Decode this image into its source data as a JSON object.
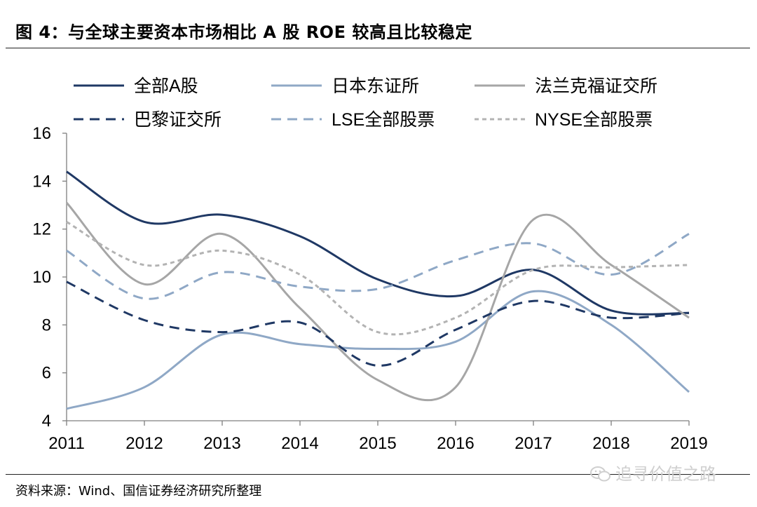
{
  "figure": {
    "title": "图 4：与全球主要资本市场相比 A 股 ROE 较高且比较稳定",
    "source": "资料来源：Wind、国信证券经济研究所整理",
    "watermark": "追寻价值之路",
    "watermark_icon": "wechat-icon"
  },
  "chart_data": {
    "type": "line",
    "title": "",
    "xlabel": "",
    "ylabel": "",
    "categories": [
      "2011",
      "2012",
      "2013",
      "2014",
      "2015",
      "2016",
      "2017",
      "2018",
      "2019"
    ],
    "ylim": [
      4,
      16
    ],
    "yticks": [
      4,
      6,
      8,
      10,
      12,
      14,
      16
    ],
    "grid": false,
    "legend_position": "top",
    "series": [
      {
        "name": "全部A股",
        "values": [
          14.4,
          12.3,
          12.6,
          11.7,
          9.9,
          9.2,
          10.3,
          8.6,
          8.5
        ],
        "color": "#1f3864",
        "dash": "solid"
      },
      {
        "name": "日本东证所",
        "values": [
          4.5,
          5.4,
          7.6,
          7.2,
          7.0,
          7.3,
          9.4,
          8.0,
          5.2
        ],
        "color": "#8fa8c6",
        "dash": "solid"
      },
      {
        "name": "法兰克福证交所",
        "values": [
          13.1,
          9.7,
          11.8,
          8.7,
          5.7,
          5.4,
          12.4,
          10.5,
          8.3
        ],
        "color": "#a6a6a6",
        "dash": "solid"
      },
      {
        "name": "巴黎证交所",
        "values": [
          9.8,
          8.2,
          7.7,
          8.1,
          6.3,
          7.8,
          9.0,
          8.3,
          8.5
        ],
        "color": "#1f3864",
        "dash": "dashed"
      },
      {
        "name": "LSE全部股票",
        "values": [
          11.1,
          9.1,
          10.2,
          9.6,
          9.5,
          10.7,
          11.4,
          10.1,
          11.8
        ],
        "color": "#8fa8c6",
        "dash": "dashed"
      },
      {
        "name": "NYSE全部股票",
        "values": [
          12.3,
          10.5,
          11.1,
          10.1,
          7.7,
          8.3,
          10.3,
          10.4,
          10.5
        ],
        "color": "#b3b3b3",
        "dash": "dotted"
      }
    ]
  }
}
